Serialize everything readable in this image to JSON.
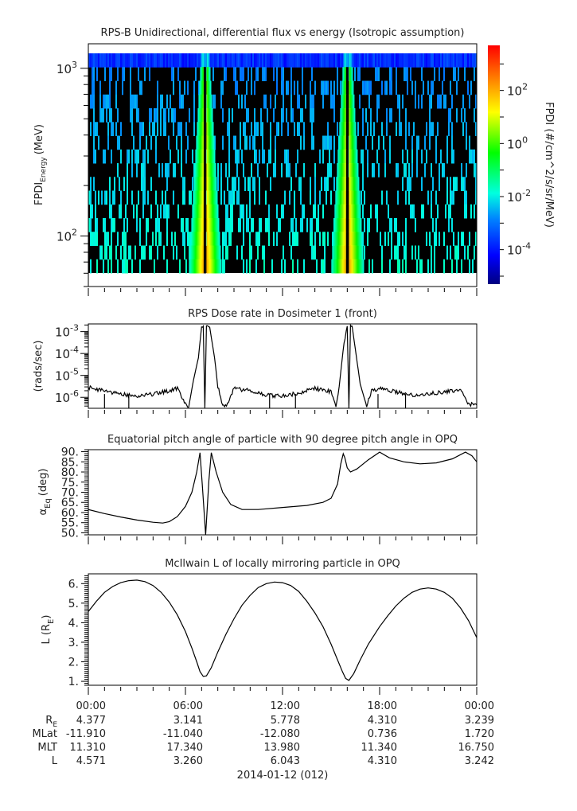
{
  "figure": {
    "date_label": "2014-01-12 (012)"
  },
  "chart_data": [
    {
      "type": "heatmap",
      "title": "RPS-B  Unidirectional, differential flux vs energy (Isotropic assumption)",
      "ylabel_main": "FPDI",
      "ylabel_sub": "Energy",
      "ylabel_unit": "(MeV)",
      "yscale": "log",
      "ylim": [
        50,
        1400
      ],
      "yticks": [
        {
          "value": 100,
          "base": "10",
          "exp": "2"
        },
        {
          "value": 1000,
          "base": "10",
          "exp": "3"
        }
      ],
      "energy_bins": 16,
      "x_range_hours": [
        0,
        24
      ],
      "features": [
        {
          "name": "belt-crossing-1",
          "center_hours": 7.2,
          "gap_hours": 0.3
        },
        {
          "name": "belt-crossing-2",
          "center_hours": 16.0,
          "gap_hours": 0.3
        }
      ],
      "colorbar": {
        "label": "FPDI (#/cm^2/s/sr/MeV)",
        "scale": "log",
        "range_exp": [
          -5.3,
          3.7
        ],
        "ticks": [
          {
            "base": "10",
            "exp": "2",
            "value_exp": 2
          },
          {
            "base": "10",
            "exp": "0",
            "value_exp": 0
          },
          {
            "base": "10",
            "exp": "-2",
            "value_exp": -2
          },
          {
            "base": "10",
            "exp": "-4",
            "value_exp": -4
          }
        ],
        "colors": [
          "#000080",
          "#0000ff",
          "#0080ff",
          "#00ffe0",
          "#00ff00",
          "#ffff00",
          "#ff8000",
          "#ff0000"
        ]
      }
    },
    {
      "type": "line",
      "title": "RPS  Dose rate in Dosimeter 1 (front)",
      "ylabel": "(rads/sec)",
      "yscale": "log",
      "ylim_exp": [
        -6.5,
        -2.65
      ],
      "yticks": [
        {
          "base": "10",
          "exp": "-3",
          "value_exp": -3
        },
        {
          "base": "10",
          "exp": "-4",
          "value_exp": -4
        },
        {
          "base": "10",
          "exp": "-5",
          "value_exp": -5
        },
        {
          "base": "10",
          "exp": "-6",
          "value_exp": -6
        }
      ],
      "x_hours": [
        0,
        1,
        2,
        3,
        4,
        5,
        5.5,
        6,
        6.2,
        6.5,
        6.8,
        7.0,
        7.1,
        7.2,
        7.3,
        7.5,
        7.8,
        8.0,
        8.3,
        8.6,
        9.0,
        10,
        11,
        12,
        13,
        14,
        15,
        15.3,
        15.5,
        15.8,
        16.0,
        16.1,
        16.2,
        16.3,
        16.5,
        16.8,
        17.2,
        17.5,
        18,
        19,
        20,
        21,
        22,
        23,
        23.5,
        24
      ],
      "y_log10": [
        -5.55,
        -5.7,
        -5.85,
        -5.95,
        -5.85,
        -5.7,
        -5.6,
        -6.3,
        -6.45,
        -5.2,
        -4.2,
        -2.75,
        -2.75,
        -6.5,
        -2.75,
        -2.8,
        -4.2,
        -5.5,
        -6.4,
        -6.3,
        -5.6,
        -5.7,
        -5.9,
        -5.95,
        -5.8,
        -5.6,
        -5.75,
        -6.4,
        -5.5,
        -3.5,
        -2.75,
        -6.5,
        -2.75,
        -2.75,
        -3.8,
        -5.4,
        -6.4,
        -5.7,
        -5.6,
        -5.75,
        -5.9,
        -5.85,
        -5.75,
        -5.7,
        -6.3,
        -6.35
      ]
    },
    {
      "type": "line",
      "title": "Equatorial pitch angle of particle with 90 degree pitch angle in OPQ",
      "ylabel_main": "α",
      "ylabel_sub": "Eq",
      "ylabel_unit": "(deg)",
      "ylim": [
        49,
        91
      ],
      "yticks": [
        "90.",
        "85.",
        "80.",
        "75.",
        "70.",
        "65.",
        "60.",
        "55.",
        "50."
      ],
      "ytick_values": [
        90,
        85,
        80,
        75,
        70,
        65,
        60,
        55,
        50
      ],
      "x_hours": [
        0,
        1,
        2,
        3,
        4,
        4.6,
        5.0,
        5.5,
        6.0,
        6.4,
        6.7,
        6.9,
        7.05,
        7.25,
        7.45,
        7.6,
        7.9,
        8.3,
        8.8,
        9.5,
        10.5,
        12,
        13.5,
        14.5,
        15.0,
        15.4,
        15.6,
        15.75,
        15.85,
        16.0,
        16.2,
        16.6,
        17.3,
        18.0,
        18.6,
        19.5,
        20.5,
        21.5,
        22.5,
        23.3,
        23.7,
        24
      ],
      "y_values": [
        61.5,
        59.5,
        57.8,
        56.3,
        55.2,
        54.8,
        55.5,
        58.0,
        63.0,
        70.0,
        80.0,
        89.5,
        73.0,
        49.0,
        76.0,
        89.5,
        80.0,
        70.0,
        64.0,
        61.5,
        61.5,
        62.5,
        63.5,
        65.0,
        67.0,
        74.0,
        84.0,
        89.0,
        87.0,
        82.0,
        80.0,
        81.5,
        86.0,
        89.8,
        87.0,
        85.0,
        84.0,
        84.5,
        86.5,
        89.8,
        88.0,
        85.0
      ]
    },
    {
      "type": "line",
      "title": "McIlwain L of locally mirroring particle in OPQ",
      "ylabel_main": "L (R",
      "ylabel_sub": "E",
      "ylabel_unit": ")",
      "ylim": [
        0.8,
        6.5
      ],
      "yticks": [
        "6.",
        "5.",
        "4.",
        "3.",
        "2.",
        "1."
      ],
      "ytick_values": [
        6,
        5,
        4,
        3,
        2,
        1
      ],
      "x_hours": [
        0,
        0.5,
        1,
        1.5,
        2,
        2.5,
        3,
        3.5,
        4,
        4.5,
        5,
        5.5,
        6,
        6.4,
        6.7,
        6.9,
        7.1,
        7.3,
        7.6,
        8.0,
        8.5,
        9,
        9.5,
        10,
        10.5,
        11,
        11.5,
        12,
        12.5,
        13,
        13.5,
        14,
        14.5,
        15,
        15.4,
        15.7,
        15.9,
        16.1,
        16.4,
        16.8,
        17.3,
        18,
        18.5,
        19,
        19.5,
        20,
        20.5,
        21,
        21.5,
        22,
        22.5,
        23,
        23.5,
        24
      ],
      "y_values": [
        4.57,
        5.1,
        5.55,
        5.85,
        6.05,
        6.15,
        6.18,
        6.1,
        5.9,
        5.55,
        5.05,
        4.4,
        3.55,
        2.7,
        2.0,
        1.5,
        1.25,
        1.28,
        1.7,
        2.5,
        3.4,
        4.2,
        4.9,
        5.4,
        5.8,
        6.0,
        6.08,
        6.05,
        5.9,
        5.6,
        5.1,
        4.5,
        3.8,
        2.9,
        2.1,
        1.5,
        1.15,
        1.05,
        1.4,
        2.1,
        2.9,
        3.8,
        4.35,
        4.85,
        5.25,
        5.55,
        5.72,
        5.78,
        5.72,
        5.55,
        5.25,
        4.75,
        4.1,
        3.24
      ]
    }
  ],
  "time_axis": {
    "ticks": [
      "00:00",
      "06:00",
      "12:00",
      "18:00",
      "00:00"
    ],
    "tick_hours": [
      0,
      6,
      12,
      18,
      24
    ],
    "ephemeris_rows": [
      {
        "label_main": "R",
        "label_sub": "E",
        "values": [
          "4.377",
          "3.141",
          "5.778",
          "4.310",
          "3.239"
        ]
      },
      {
        "label_main": "MLat",
        "label_sub": "",
        "values": [
          "-11.910",
          "-11.040",
          "-12.080",
          "0.736",
          "1.720"
        ]
      },
      {
        "label_main": "MLT",
        "label_sub": "",
        "values": [
          "11.310",
          "17.340",
          "13.980",
          "11.340",
          "16.750"
        ]
      },
      {
        "label_main": "L",
        "label_sub": "",
        "values": [
          "4.571",
          "3.260",
          "6.043",
          "4.310",
          "3.242"
        ]
      }
    ]
  }
}
